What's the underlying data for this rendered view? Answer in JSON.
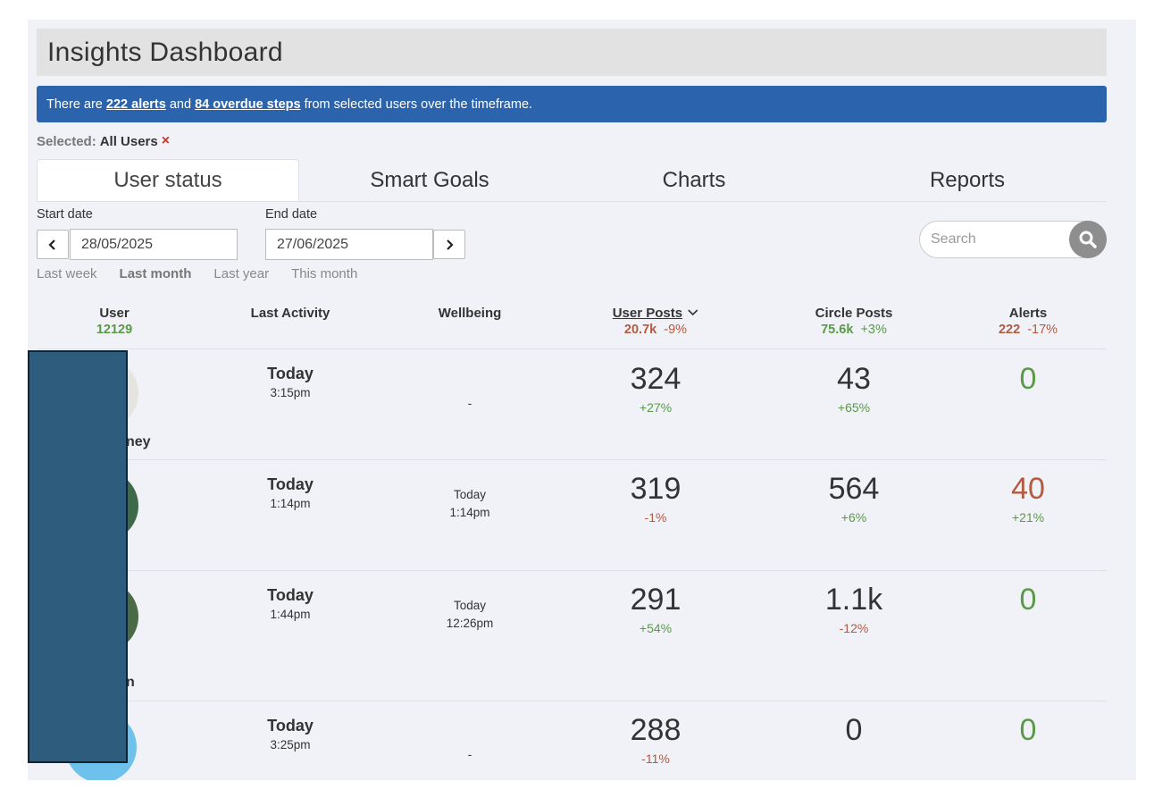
{
  "header": {
    "title": "Insights Dashboard"
  },
  "banner": {
    "prefix": "There are ",
    "alerts_link": "222 alerts",
    "middle": " and ",
    "overdue_link": "84 overdue steps",
    "suffix": " from selected users over the timeframe."
  },
  "selection": {
    "label": "Selected:",
    "value": "All Users",
    "clear_icon": "×"
  },
  "tabs": [
    {
      "label": "User status",
      "active": true
    },
    {
      "label": "Smart Goals",
      "active": false
    },
    {
      "label": "Charts",
      "active": false
    },
    {
      "label": "Reports",
      "active": false
    }
  ],
  "filters": {
    "start_label": "Start date",
    "start_value": "28/05/2025",
    "end_label": "End date",
    "end_value": "27/06/2025",
    "quick_ranges": [
      {
        "label": "Last week",
        "active": false
      },
      {
        "label": "Last month",
        "active": true
      },
      {
        "label": "Last year",
        "active": false
      },
      {
        "label": "This month",
        "active": false
      }
    ]
  },
  "search": {
    "placeholder": "Search",
    "icon": "search-icon"
  },
  "columns": {
    "user": {
      "label": "User",
      "stat": "12129"
    },
    "last_activity": {
      "label": "Last Activity"
    },
    "wellbeing": {
      "label": "Wellbeing"
    },
    "user_posts": {
      "label": "User Posts",
      "stat": "20.7k",
      "change": "-9%",
      "sort_icon": "chevron-down-icon"
    },
    "circle_posts": {
      "label": "Circle Posts",
      "stat": "75.6k",
      "change": "+3%"
    },
    "alerts": {
      "label": "Alerts",
      "stat": "222",
      "change": "-17%"
    }
  },
  "rows": [
    {
      "name_fragment": "ney",
      "activity_day": "Today",
      "activity_time": "3:15pm",
      "wellbeing_day": "",
      "wellbeing_time": "-",
      "user_posts": "324",
      "user_posts_change": "+27%",
      "circle_posts": "43",
      "circle_posts_change": "+65%",
      "alerts": "0",
      "alerts_change": ""
    },
    {
      "name_fragment": "",
      "activity_day": "Today",
      "activity_time": "1:14pm",
      "wellbeing_day": "Today",
      "wellbeing_time": "1:14pm",
      "user_posts": "319",
      "user_posts_change": "-1%",
      "circle_posts": "564",
      "circle_posts_change": "+6%",
      "alerts": "40",
      "alerts_change": "+21%"
    },
    {
      "name_fragment": "n",
      "activity_day": "Today",
      "activity_time": "1:44pm",
      "wellbeing_day": "Today",
      "wellbeing_time": "12:26pm",
      "user_posts": "291",
      "user_posts_change": "+54%",
      "circle_posts": "1.1k",
      "circle_posts_change": "-12%",
      "alerts": "0",
      "alerts_change": ""
    },
    {
      "name_fragment": "",
      "activity_day": "Today",
      "activity_time": "3:25pm",
      "wellbeing_day": "",
      "wellbeing_time": "-",
      "user_posts": "288",
      "user_posts_change": "-11%",
      "circle_posts": "0",
      "circle_posts_change": "",
      "alerts": "0",
      "alerts_change": ""
    }
  ],
  "colors": {
    "banner": "#2b64ad",
    "positive": "#5a9a47",
    "negative": "#b35a3f",
    "redaction": "#2e5c7c"
  }
}
